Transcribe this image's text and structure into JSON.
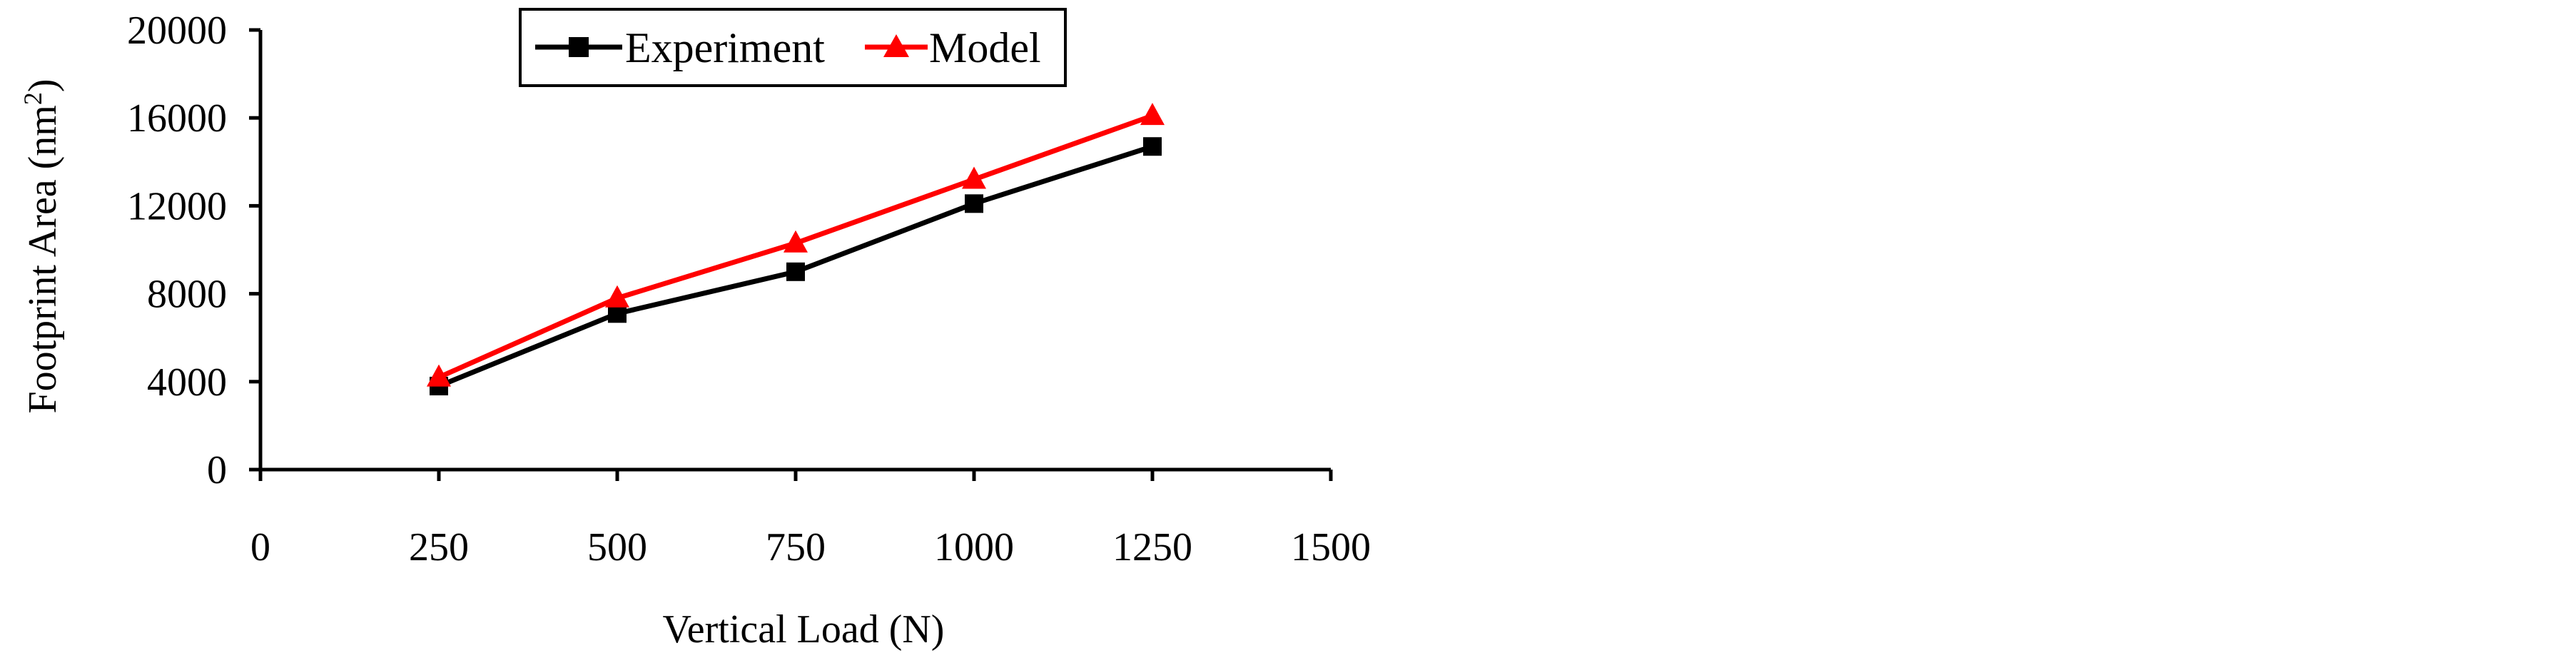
{
  "chart_data": {
    "type": "line",
    "x": [
      250,
      500,
      750,
      1000,
      1250
    ],
    "series": [
      {
        "name": "Experiment",
        "values": [
          3800,
          7100,
          9000,
          12100,
          14700
        ],
        "color": "#000000",
        "marker": "square"
      },
      {
        "name": "Model",
        "values": [
          4200,
          7800,
          10300,
          13200,
          16100
        ],
        "color": "#ff0000",
        "marker": "triangle"
      }
    ],
    "xlabel": "Vertical Load (N)",
    "ylabel": {
      "main": "Footprint Area (nm",
      "sup": "2",
      "tail": ")"
    },
    "xlim": [
      0,
      1500
    ],
    "ylim": [
      0,
      20000
    ],
    "x_ticks": [
      "0",
      "250",
      "500",
      "750",
      "1000",
      "1250",
      "1500"
    ],
    "y_ticks": [
      "0",
      "4000",
      "8000",
      "12000",
      "16000",
      "20000"
    ],
    "grid": false,
    "legend_position": "top"
  }
}
